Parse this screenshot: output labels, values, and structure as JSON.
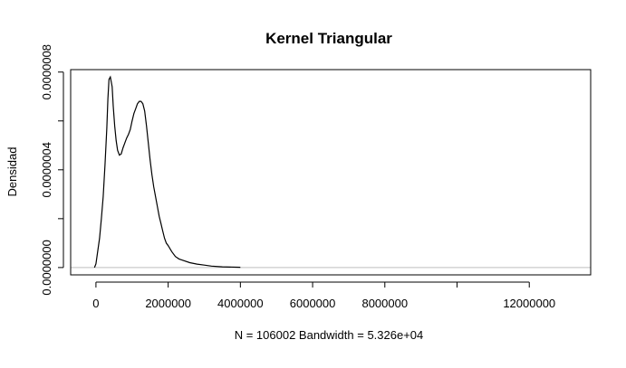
{
  "chart_data": {
    "type": "line",
    "title": "Kernel Triangular",
    "xlabel": "N = 106002   Bandwidth = 5.326e+04",
    "ylabel": "Densidad",
    "xlim": [
      -700000,
      13700000
    ],
    "ylim": [
      -3e-08,
      8.1e-07
    ],
    "x_ticks": [
      0,
      2000000,
      4000000,
      6000000,
      8000000,
      10000000,
      12000000
    ],
    "x_tick_labels": [
      "0",
      "2000000",
      "4000000",
      "6000000",
      "8000000",
      "",
      "12000000"
    ],
    "y_ticks": [
      0,
      2e-07,
      4e-07,
      6e-07,
      8e-07
    ],
    "y_tick_labels": [
      "0.0000000",
      "",
      "0.0000004",
      "",
      "0.0000008"
    ],
    "grid": false,
    "reference_line": {
      "y": 0,
      "color": "#bebebe"
    },
    "series": [
      {
        "color": "#000000",
        "x": [
          -40000,
          0,
          100000,
          150000,
          200000,
          250000,
          300000,
          330000,
          360000,
          400000,
          450000,
          480000,
          520000,
          560000,
          600000,
          650000,
          700000,
          750000,
          800000,
          850000,
          900000,
          950000,
          1000000,
          1050000,
          1100000,
          1150000,
          1200000,
          1250000,
          1300000,
          1350000,
          1400000,
          1450000,
          1500000,
          1550000,
          1600000,
          1650000,
          1700000,
          1750000,
          1800000,
          1850000,
          1900000,
          1950000,
          2000000,
          2100000,
          2200000,
          2300000,
          2400000,
          2600000,
          2800000,
          3000000,
          3200000,
          3500000,
          4000000
        ],
        "y": [
          0,
          1.5e-08,
          1.2e-07,
          2e-07,
          2.9e-07,
          4.2e-07,
          5.7e-07,
          6.9e-07,
          7.7e-07,
          7.8e-07,
          7.4e-07,
          6.6e-07,
          5.8e-07,
          5.2e-07,
          4.8e-07,
          4.6e-07,
          4.65e-07,
          4.9e-07,
          5.1e-07,
          5.3e-07,
          5.45e-07,
          5.65e-07,
          6e-07,
          6.3e-07,
          6.5e-07,
          6.7e-07,
          6.8e-07,
          6.8e-07,
          6.7e-07,
          6.4e-07,
          5.8e-07,
          5.1e-07,
          4.4e-07,
          3.8e-07,
          3.3e-07,
          2.9e-07,
          2.5e-07,
          2.1e-07,
          1.8e-07,
          1.5e-07,
          1.2e-07,
          1e-07,
          9e-08,
          6.5e-08,
          4.5e-08,
          3.5e-08,
          3e-08,
          2e-08,
          1.4e-08,
          1e-08,
          6e-09,
          3e-09,
          1e-09
        ]
      }
    ]
  }
}
